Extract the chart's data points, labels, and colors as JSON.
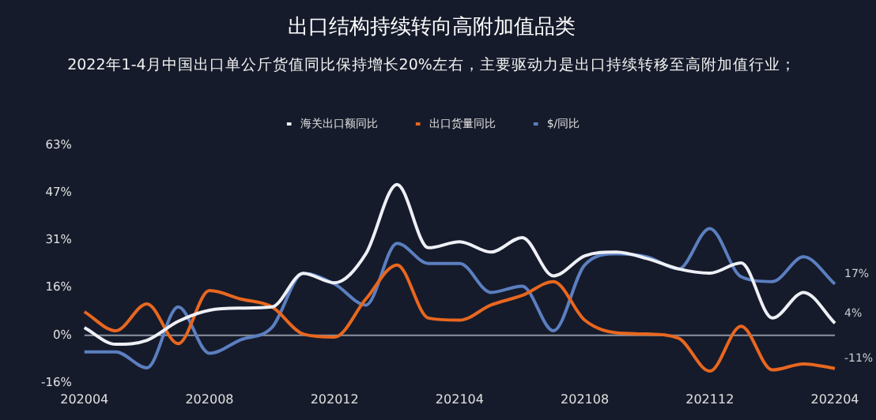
{
  "chart_data": {
    "type": "line",
    "title": "出口结构持续转向高附加值品类",
    "subtitle": "2022年1-4月中国出口单公斤货值同比保持增长20%左右，主要驱动力是出口持续转移至高附加值行业；",
    "categories": [
      "202004",
      null,
      null,
      null,
      "202008",
      null,
      null,
      null,
      "202012",
      null,
      null,
      null,
      "202104",
      null,
      null,
      null,
      "202108",
      null,
      null,
      null,
      "202112",
      null,
      null,
      null,
      "202204"
    ],
    "series": [
      {
        "name": "海关出口额同比",
        "color": "#eef0f6",
        "values": [
          2.5,
          -3,
          -1.7,
          4.6,
          8.3,
          9,
          9.4,
          20.5,
          17.4,
          27,
          50,
          29,
          31,
          27.6,
          32.4,
          19.7,
          26.3,
          27.6,
          25.4,
          22,
          20.6,
          24,
          5.7,
          14.2,
          4
        ],
        "value_labels": [
          null,
          null,
          null,
          null,
          null,
          null,
          null,
          null,
          null,
          null,
          null,
          null,
          null,
          null,
          null,
          null,
          null,
          null,
          null,
          null,
          null,
          null,
          null,
          null,
          "4%"
        ]
      },
      {
        "name": "出口货量同比",
        "color": "#e8671f",
        "values": [
          7.8,
          1.5,
          10.4,
          -2.8,
          14.8,
          12,
          9.4,
          0.4,
          -0.6,
          12,
          23.3,
          5.7,
          5,
          10,
          13.2,
          17.8,
          5,
          0.8,
          0.4,
          -1,
          -11.9,
          3,
          -11.5,
          -9.5,
          -11
        ],
        "value_labels": [
          null,
          null,
          null,
          null,
          null,
          null,
          null,
          null,
          null,
          null,
          null,
          null,
          null,
          null,
          null,
          null,
          null,
          null,
          null,
          null,
          null,
          null,
          null,
          null,
          "-11%"
        ]
      },
      {
        "name": "$/同比",
        "color": "#5b7fc0",
        "values": [
          -5.5,
          -5.5,
          -10.8,
          9.4,
          -6,
          -1.5,
          2.6,
          20.5,
          17,
          10,
          30.5,
          23.8,
          23.8,
          14.2,
          16.3,
          1.5,
          23.3,
          27,
          26,
          22,
          35.4,
          19.4,
          17.8,
          26,
          17
        ],
        "value_labels": [
          null,
          null,
          null,
          null,
          null,
          null,
          null,
          null,
          null,
          null,
          null,
          null,
          null,
          null,
          null,
          null,
          null,
          null,
          null,
          null,
          null,
          null,
          null,
          null,
          "17%"
        ]
      }
    ],
    "ylim": [
      -15.75,
      63
    ],
    "yticks": [
      {
        "value": -15.75,
        "label": "-16%"
      },
      {
        "value": 0,
        "label": "0%"
      },
      {
        "value": 15.75,
        "label": "16%"
      },
      {
        "value": 31.5,
        "label": "31%"
      },
      {
        "value": 47.25,
        "label": "47%"
      },
      {
        "value": 63,
        "label": "63%"
      }
    ],
    "ref_lines": [
      {
        "axis": "y",
        "value": 0,
        "color": "#8d93a0"
      }
    ],
    "grid": false,
    "legend": "top",
    "marker": "none",
    "line_style": "solid"
  }
}
